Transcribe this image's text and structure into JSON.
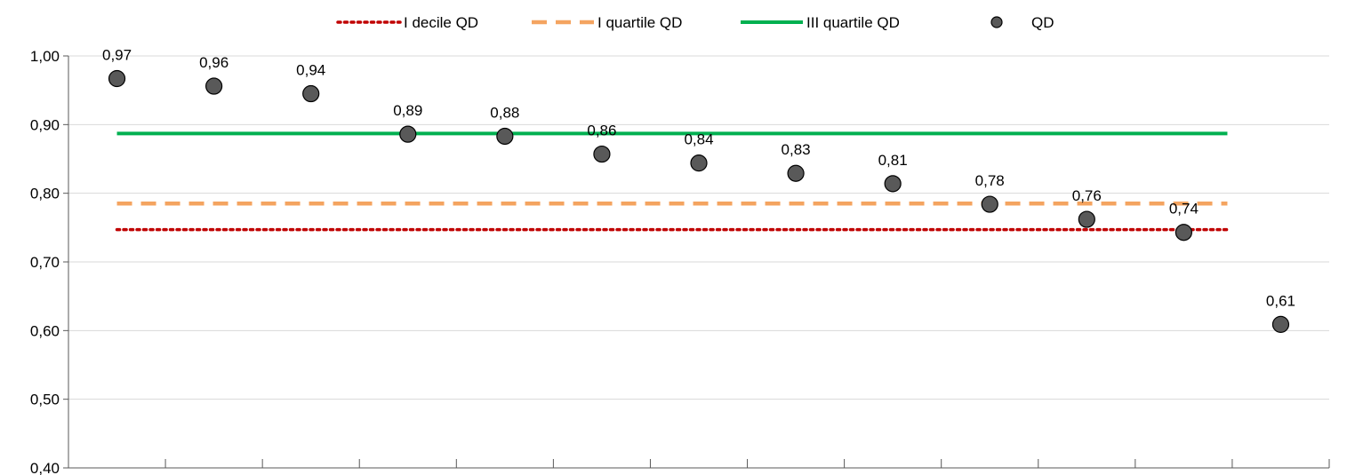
{
  "chart_data": {
    "type": "scatter",
    "categories": [
      "",
      "",
      "",
      "",
      "",
      "",
      "",
      "",
      "",
      "",
      "",
      "",
      ""
    ],
    "ylim": [
      0.4,
      1.0
    ],
    "yticks": [
      "0,40",
      "0,50",
      "0,60",
      "0,70",
      "0,80",
      "0,90",
      "1,00"
    ],
    "grid": true,
    "legend_position": "top",
    "series": [
      {
        "name": "I decile QD",
        "kind": "reference-line",
        "style": "dotted",
        "color": "#C00000",
        "value": 0.747
      },
      {
        "name": "I quartile QD",
        "kind": "reference-line",
        "style": "dashed",
        "color": "#F4A460",
        "value": 0.785
      },
      {
        "name": "III quartile QD",
        "kind": "reference-line",
        "style": "solid",
        "color": "#00B050",
        "value": 0.887
      },
      {
        "name": "QD",
        "kind": "points",
        "color": "#595959",
        "values": [
          0.967,
          0.956,
          0.945,
          0.886,
          0.883,
          0.857,
          0.844,
          0.829,
          0.814,
          0.784,
          0.762,
          0.743,
          0.609
        ],
        "labels": [
          "0,97",
          "0,96",
          "0,94",
          "0,89",
          "0,88",
          "0,86",
          "0,84",
          "0,83",
          "0,81",
          "0,78",
          "0,76",
          "0,74",
          "0,61"
        ]
      }
    ]
  }
}
